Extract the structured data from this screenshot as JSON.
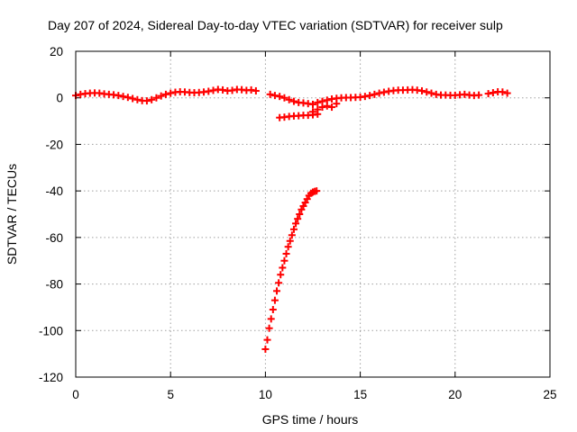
{
  "chart_data": {
    "type": "scatter",
    "title": "Day 207 of 2024, Sidereal Day-to-day VTEC variation (SDTVAR) for receiver sulp",
    "xlabel": "GPS time / hours",
    "ylabel": "SDTVAR / TECUs",
    "xlim": [
      0,
      25
    ],
    "ylim": [
      -120,
      20
    ],
    "x_ticks": [
      0,
      5,
      10,
      15,
      20,
      25
    ],
    "y_ticks": [
      -120,
      -100,
      -80,
      -60,
      -40,
      -20,
      0,
      20
    ],
    "x_tick_labels": [
      "0",
      "5",
      "10",
      "15",
      "20",
      "25"
    ],
    "y_tick_labels": [
      "-120",
      "-100",
      "-80",
      "-60",
      "-40",
      "-20",
      "0",
      "20"
    ],
    "grid": true,
    "marker": "plus",
    "color": "#ff0000",
    "series": [
      {
        "points": [
          [
            0.0,
            1.0
          ],
          [
            0.25,
            1.5
          ],
          [
            0.5,
            1.8
          ],
          [
            0.75,
            2.0
          ],
          [
            1.0,
            2.1
          ],
          [
            1.25,
            2.0
          ],
          [
            1.5,
            1.7
          ],
          [
            1.75,
            1.5
          ],
          [
            2.0,
            1.3
          ],
          [
            2.25,
            1.0
          ],
          [
            2.5,
            0.6
          ],
          [
            2.75,
            0.2
          ],
          [
            3.0,
            -0.3
          ],
          [
            3.25,
            -0.8
          ],
          [
            3.5,
            -1.2
          ],
          [
            3.75,
            -1.3
          ],
          [
            4.0,
            -0.8
          ],
          [
            4.25,
            0.0
          ],
          [
            4.5,
            0.8
          ],
          [
            4.75,
            1.5
          ],
          [
            5.0,
            2.0
          ],
          [
            5.25,
            2.4
          ],
          [
            5.5,
            2.6
          ],
          [
            5.75,
            2.5
          ],
          [
            6.0,
            2.3
          ],
          [
            6.25,
            2.2
          ],
          [
            6.5,
            2.3
          ],
          [
            6.75,
            2.5
          ],
          [
            7.0,
            2.8
          ],
          [
            7.25,
            3.2
          ],
          [
            7.5,
            3.6
          ],
          [
            7.75,
            3.4
          ],
          [
            8.0,
            3.0
          ],
          [
            8.25,
            3.2
          ],
          [
            8.5,
            3.6
          ],
          [
            8.75,
            3.5
          ],
          [
            9.0,
            3.2
          ],
          [
            9.25,
            3.4
          ],
          [
            9.5,
            3.0
          ],
          [
            10.25,
            1.5
          ],
          [
            10.5,
            1.0
          ],
          [
            10.75,
            0.6
          ],
          [
            11.0,
            0.0
          ],
          [
            11.25,
            -0.8
          ],
          [
            11.5,
            -1.5
          ],
          [
            11.75,
            -2.0
          ],
          [
            12.0,
            -2.2
          ],
          [
            12.25,
            -2.5
          ],
          [
            12.5,
            -2.8
          ],
          [
            12.75,
            -2.0
          ],
          [
            13.0,
            -1.5
          ],
          [
            13.25,
            -1.0
          ],
          [
            13.5,
            -0.5
          ],
          [
            13.75,
            -0.2
          ],
          [
            14.0,
            0.0
          ],
          [
            14.25,
            0.1
          ],
          [
            14.5,
            0.1
          ],
          [
            14.75,
            0.2
          ],
          [
            15.0,
            0.3
          ],
          [
            15.25,
            0.6
          ],
          [
            15.5,
            1.0
          ],
          [
            15.75,
            1.5
          ],
          [
            16.0,
            2.0
          ],
          [
            16.25,
            2.4
          ],
          [
            16.5,
            2.8
          ],
          [
            16.75,
            3.1
          ],
          [
            17.0,
            3.3
          ],
          [
            17.25,
            3.3
          ],
          [
            17.5,
            3.4
          ],
          [
            17.75,
            3.5
          ],
          [
            18.0,
            3.3
          ],
          [
            18.25,
            3.0
          ],
          [
            18.5,
            2.5
          ],
          [
            18.75,
            2.0
          ],
          [
            19.0,
            1.5
          ],
          [
            19.25,
            1.2
          ],
          [
            19.5,
            1.2
          ],
          [
            19.75,
            1.1
          ],
          [
            20.0,
            1.1
          ],
          [
            20.25,
            1.3
          ],
          [
            20.5,
            1.5
          ],
          [
            20.75,
            1.2
          ],
          [
            21.0,
            1.0
          ],
          [
            21.25,
            1.2
          ],
          [
            21.75,
            1.8
          ],
          [
            22.0,
            2.2
          ],
          [
            22.25,
            2.6
          ],
          [
            22.5,
            2.5
          ],
          [
            22.75,
            2.0
          ]
        ]
      },
      {
        "points": [
          [
            10.75,
            -8.5
          ],
          [
            11.0,
            -8.3
          ],
          [
            11.25,
            -8.0
          ],
          [
            11.5,
            -7.8
          ],
          [
            11.75,
            -7.7
          ],
          [
            12.0,
            -7.5
          ],
          [
            12.25,
            -7.5
          ],
          [
            12.5,
            -7.3
          ],
          [
            12.75,
            -7.0
          ]
        ]
      },
      {
        "points": [
          [
            12.5,
            -6.0
          ],
          [
            12.75,
            -5.0
          ],
          [
            13.0,
            -4.0
          ],
          [
            13.25,
            -3.5
          ],
          [
            13.5,
            -4.0
          ],
          [
            13.75,
            -2.5
          ]
        ]
      },
      {
        "points": [
          [
            10.0,
            -108
          ],
          [
            10.1,
            -104
          ],
          [
            10.2,
            -99
          ],
          [
            10.3,
            -95
          ],
          [
            10.4,
            -91
          ],
          [
            10.5,
            -87
          ],
          [
            10.6,
            -83
          ],
          [
            10.7,
            -79.5
          ],
          [
            10.8,
            -76
          ],
          [
            10.9,
            -73
          ],
          [
            11.0,
            -70
          ],
          [
            11.1,
            -67
          ],
          [
            11.2,
            -64
          ],
          [
            11.3,
            -61.5
          ],
          [
            11.4,
            -59
          ],
          [
            11.5,
            -56.5
          ],
          [
            11.6,
            -54
          ],
          [
            11.7,
            -52
          ],
          [
            11.8,
            -50
          ],
          [
            11.9,
            -48
          ],
          [
            12.0,
            -46.5
          ],
          [
            12.1,
            -45
          ],
          [
            12.2,
            -43.5
          ],
          [
            12.3,
            -42
          ],
          [
            12.4,
            -41
          ],
          [
            12.5,
            -40.5
          ],
          [
            12.6,
            -40.2
          ],
          [
            12.7,
            -40.0
          ]
        ]
      }
    ]
  }
}
